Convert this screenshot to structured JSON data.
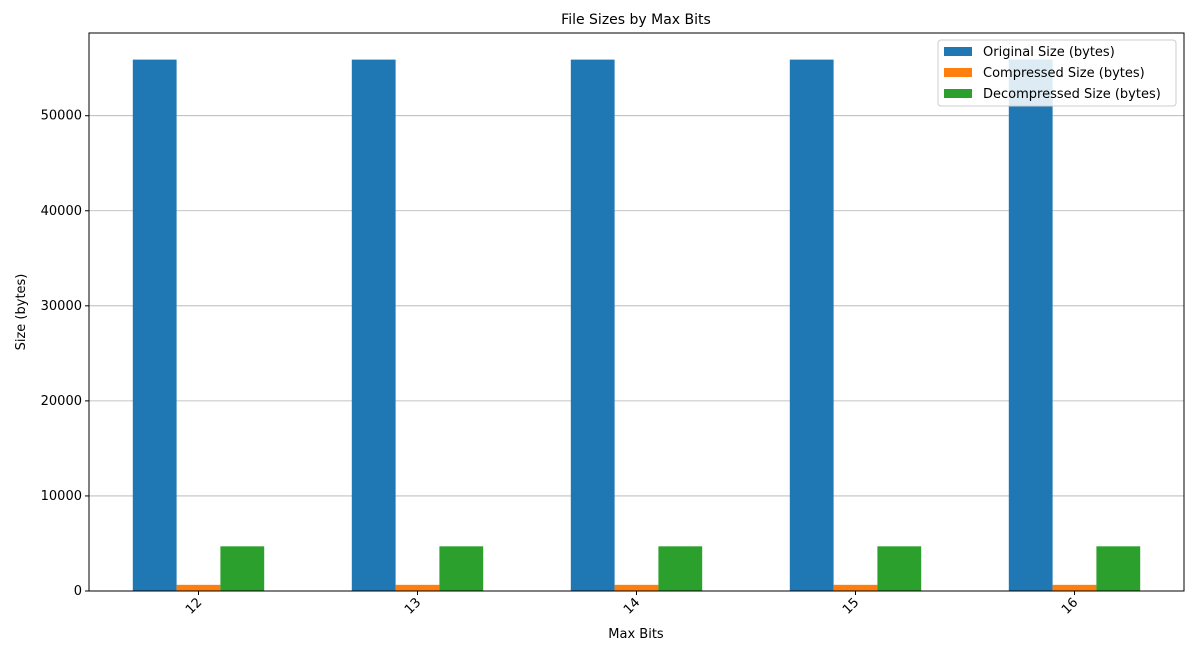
{
  "chart_data": {
    "type": "bar",
    "title": "File Sizes by Max Bits",
    "xlabel": "Max Bits",
    "ylabel": "Size (bytes)",
    "categories": [
      "12",
      "13",
      "14",
      "15",
      "16"
    ],
    "series": [
      {
        "name": "Original Size (bytes)",
        "color": "#1f77b4",
        "values": [
          55900,
          55900,
          55900,
          55900,
          55900
        ]
      },
      {
        "name": "Compressed Size (bytes)",
        "color": "#ff7f0e",
        "values": [
          650,
          650,
          650,
          650,
          650
        ]
      },
      {
        "name": "Decompressed Size (bytes)",
        "color": "#2ca02c",
        "values": [
          4700,
          4700,
          4700,
          4700,
          4700
        ]
      }
    ],
    "yticks": [
      0,
      10000,
      20000,
      30000,
      40000,
      50000
    ],
    "ylim": [
      0,
      58700
    ],
    "grid": "y",
    "legend_position": "top-right",
    "xtick_rotation": 45
  }
}
